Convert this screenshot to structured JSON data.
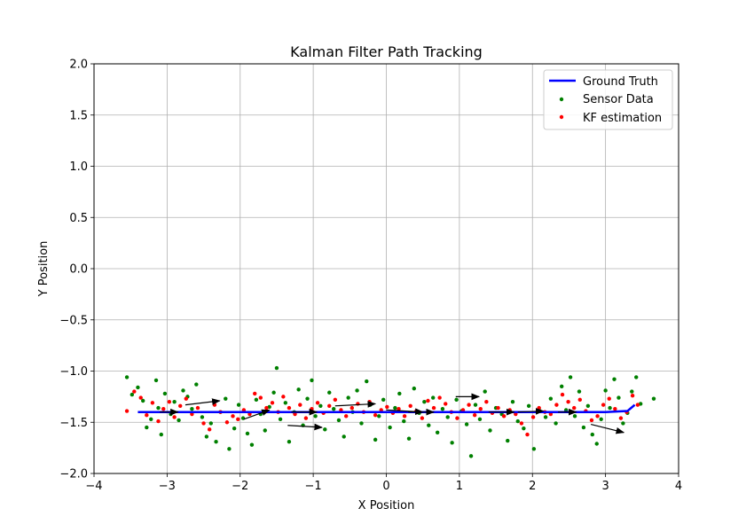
{
  "chart_data": {
    "type": "scatter",
    "title": "Kalman Filter Path Tracking",
    "xlabel": "X Position",
    "ylabel": "Y Position",
    "xlim": [
      -4,
      4
    ],
    "ylim": [
      -2,
      2
    ],
    "xticks": [
      -4,
      -3,
      -2,
      -1,
      0,
      1,
      2,
      3,
      4
    ],
    "yticks": [
      -2.0,
      -1.5,
      -1.0,
      -0.5,
      0.0,
      0.5,
      1.0,
      1.5,
      2.0
    ],
    "xtick_labels": [
      "−4",
      "−3",
      "−2",
      "−1",
      "0",
      "1",
      "2",
      "3",
      "4"
    ],
    "ytick_labels": [
      "−2.0",
      "−1.5",
      "−1.0",
      "−0.5",
      "0.0",
      "0.5",
      "1.0",
      "1.5",
      "2.0"
    ],
    "grid": true,
    "legend_position": "top-right",
    "colors": {
      "ground_truth": "#0000ff",
      "sensor": "#008000",
      "kf": "#ff0000",
      "arrow": "#000000"
    },
    "series": [
      {
        "name": "Ground Truth",
        "kind": "line",
        "x": [
          -3.4,
          -3.0,
          -2.5,
          -2.0,
          -1.5,
          -1.0,
          -0.5,
          0.0,
          0.5,
          1.0,
          1.5,
          2.0,
          2.5,
          3.0,
          3.3,
          3.4
        ],
        "y": [
          -1.4,
          -1.4,
          -1.4,
          -1.4,
          -1.4,
          -1.4,
          -1.4,
          -1.4,
          -1.4,
          -1.4,
          -1.4,
          -1.4,
          -1.4,
          -1.4,
          -1.39,
          -1.33
        ]
      },
      {
        "name": "Sensor Data",
        "kind": "scatter",
        "points": [
          [
            -3.55,
            -1.06
          ],
          [
            -3.48,
            -1.23
          ],
          [
            -3.4,
            -1.16
          ],
          [
            -3.33,
            -1.29
          ],
          [
            -3.28,
            -1.55
          ],
          [
            -3.22,
            -1.47
          ],
          [
            -3.15,
            -1.09
          ],
          [
            -3.12,
            -1.36
          ],
          [
            -3.08,
            -1.62
          ],
          [
            -3.03,
            -1.22
          ],
          [
            -2.95,
            -1.42
          ],
          [
            -2.9,
            -1.3
          ],
          [
            -2.84,
            -1.48
          ],
          [
            -2.78,
            -1.19
          ],
          [
            -2.72,
            -1.25
          ],
          [
            -2.66,
            -1.37
          ],
          [
            -2.6,
            -1.13
          ],
          [
            -2.52,
            -1.45
          ],
          [
            -2.46,
            -1.64
          ],
          [
            -2.4,
            -1.51
          ],
          [
            -2.33,
            -1.69
          ],
          [
            -2.27,
            -1.4
          ],
          [
            -2.2,
            -1.27
          ],
          [
            -2.15,
            -1.76
          ],
          [
            -2.08,
            -1.56
          ],
          [
            -2.02,
            -1.33
          ],
          [
            -1.96,
            -1.46
          ],
          [
            -1.9,
            -1.61
          ],
          [
            -1.84,
            -1.72
          ],
          [
            -1.78,
            -1.28
          ],
          [
            -1.72,
            -1.42
          ],
          [
            -1.66,
            -1.58
          ],
          [
            -1.6,
            -1.35
          ],
          [
            -1.54,
            -1.21
          ],
          [
            -1.5,
            -0.97
          ],
          [
            -1.45,
            -1.47
          ],
          [
            -1.38,
            -1.31
          ],
          [
            -1.33,
            -1.69
          ],
          [
            -1.26,
            -1.4
          ],
          [
            -1.2,
            -1.18
          ],
          [
            -1.14,
            -1.53
          ],
          [
            -1.08,
            -1.27
          ],
          [
            -1.02,
            -1.09
          ],
          [
            -0.97,
            -1.44
          ],
          [
            -0.9,
            -1.34
          ],
          [
            -0.84,
            -1.57
          ],
          [
            -0.78,
            -1.21
          ],
          [
            -0.72,
            -1.37
          ],
          [
            -0.65,
            -1.48
          ],
          [
            -0.58,
            -1.64
          ],
          [
            -0.52,
            -1.26
          ],
          [
            -0.46,
            -1.4
          ],
          [
            -0.4,
            -1.19
          ],
          [
            -0.34,
            -1.51
          ],
          [
            -0.27,
            -1.1
          ],
          [
            -0.22,
            -1.33
          ],
          [
            -0.15,
            -1.67
          ],
          [
            -0.1,
            -1.44
          ],
          [
            -0.04,
            -1.28
          ],
          [
            0.05,
            -1.55
          ],
          [
            0.12,
            -1.36
          ],
          [
            0.18,
            -1.22
          ],
          [
            0.24,
            -1.49
          ],
          [
            0.31,
            -1.66
          ],
          [
            0.38,
            -1.17
          ],
          [
            0.45,
            -1.41
          ],
          [
            0.52,
            -1.3
          ],
          [
            0.58,
            -1.53
          ],
          [
            0.64,
            -1.26
          ],
          [
            0.7,
            -1.6
          ],
          [
            0.77,
            -1.37
          ],
          [
            0.84,
            -1.45
          ],
          [
            0.9,
            -1.7
          ],
          [
            0.96,
            -1.28
          ],
          [
            1.03,
            -1.39
          ],
          [
            1.1,
            -1.52
          ],
          [
            1.16,
            -1.83
          ],
          [
            1.22,
            -1.33
          ],
          [
            1.28,
            -1.47
          ],
          [
            1.35,
            -1.2
          ],
          [
            1.42,
            -1.58
          ],
          [
            1.5,
            -1.36
          ],
          [
            1.58,
            -1.42
          ],
          [
            1.66,
            -1.68
          ],
          [
            1.73,
            -1.3
          ],
          [
            1.8,
            -1.49
          ],
          [
            1.88,
            -1.56
          ],
          [
            1.95,
            -1.34
          ],
          [
            2.02,
            -1.76
          ],
          [
            2.1,
            -1.39
          ],
          [
            2.18,
            -1.45
          ],
          [
            2.25,
            -1.27
          ],
          [
            2.32,
            -1.51
          ],
          [
            2.4,
            -1.15
          ],
          [
            2.46,
            -1.38
          ],
          [
            2.52,
            -1.06
          ],
          [
            2.58,
            -1.44
          ],
          [
            2.64,
            -1.2
          ],
          [
            2.7,
            -1.55
          ],
          [
            2.76,
            -1.34
          ],
          [
            2.82,
            -1.62
          ],
          [
            2.88,
            -1.71
          ],
          [
            2.94,
            -1.47
          ],
          [
            3.0,
            -1.19
          ],
          [
            3.06,
            -1.36
          ],
          [
            3.12,
            -1.08
          ],
          [
            3.18,
            -1.26
          ],
          [
            3.24,
            -1.51
          ],
          [
            3.3,
            -1.41
          ],
          [
            3.36,
            -1.2
          ],
          [
            3.42,
            -1.06
          ],
          [
            3.48,
            -1.32
          ],
          [
            3.66,
            -1.27
          ]
        ]
      },
      {
        "name": "KF estimation",
        "kind": "scatter",
        "points": [
          [
            -3.55,
            -1.39
          ],
          [
            -3.45,
            -1.2
          ],
          [
            -3.36,
            -1.26
          ],
          [
            -3.28,
            -1.43
          ],
          [
            -3.2,
            -1.31
          ],
          [
            -3.12,
            -1.49
          ],
          [
            -3.05,
            -1.37
          ],
          [
            -2.97,
            -1.3
          ],
          [
            -2.9,
            -1.45
          ],
          [
            -2.82,
            -1.34
          ],
          [
            -2.74,
            -1.27
          ],
          [
            -2.66,
            -1.42
          ],
          [
            -2.58,
            -1.36
          ],
          [
            -2.5,
            -1.51
          ],
          [
            -2.42,
            -1.57
          ],
          [
            -2.35,
            -1.33
          ],
          [
            -2.27,
            -1.4
          ],
          [
            -2.18,
            -1.5
          ],
          [
            -2.1,
            -1.44
          ],
          [
            -2.03,
            -1.47
          ],
          [
            -1.95,
            -1.38
          ],
          [
            -1.87,
            -1.42
          ],
          [
            -1.8,
            -1.22
          ],
          [
            -1.72,
            -1.26
          ],
          [
            -1.64,
            -1.36
          ],
          [
            -1.56,
            -1.31
          ],
          [
            -1.48,
            -1.4
          ],
          [
            -1.41,
            -1.25
          ],
          [
            -1.33,
            -1.36
          ],
          [
            -1.25,
            -1.42
          ],
          [
            -1.18,
            -1.33
          ],
          [
            -1.1,
            -1.46
          ],
          [
            -1.02,
            -1.37
          ],
          [
            -0.94,
            -1.31
          ],
          [
            -0.86,
            -1.41
          ],
          [
            -0.78,
            -1.34
          ],
          [
            -0.7,
            -1.28
          ],
          [
            -0.62,
            -1.38
          ],
          [
            -0.55,
            -1.44
          ],
          [
            -0.47,
            -1.36
          ],
          [
            -0.39,
            -1.32
          ],
          [
            -0.31,
            -1.4
          ],
          [
            -0.23,
            -1.3
          ],
          [
            -0.15,
            -1.43
          ],
          [
            -0.07,
            -1.38
          ],
          [
            0.01,
            -1.35
          ],
          [
            0.09,
            -1.41
          ],
          [
            0.17,
            -1.37
          ],
          [
            0.25,
            -1.44
          ],
          [
            0.33,
            -1.34
          ],
          [
            0.41,
            -1.39
          ],
          [
            0.49,
            -1.46
          ],
          [
            0.57,
            -1.29
          ],
          [
            0.65,
            -1.36
          ],
          [
            0.73,
            -1.26
          ],
          [
            0.81,
            -1.32
          ],
          [
            0.89,
            -1.4
          ],
          [
            0.97,
            -1.46
          ],
          [
            1.05,
            -1.38
          ],
          [
            1.13,
            -1.33
          ],
          [
            1.21,
            -1.43
          ],
          [
            1.29,
            -1.37
          ],
          [
            1.37,
            -1.3
          ],
          [
            1.45,
            -1.41
          ],
          [
            1.53,
            -1.36
          ],
          [
            1.61,
            -1.44
          ],
          [
            1.69,
            -1.38
          ],
          [
            1.77,
            -1.42
          ],
          [
            1.85,
            -1.51
          ],
          [
            1.93,
            -1.62
          ],
          [
            2.01,
            -1.45
          ],
          [
            2.09,
            -1.36
          ],
          [
            2.17,
            -1.4
          ],
          [
            2.25,
            -1.42
          ],
          [
            2.33,
            -1.33
          ],
          [
            2.41,
            -1.23
          ],
          [
            2.49,
            -1.3
          ],
          [
            2.57,
            -1.36
          ],
          [
            2.65,
            -1.28
          ],
          [
            2.73,
            -1.39
          ],
          [
            2.81,
            -1.48
          ],
          [
            2.89,
            -1.44
          ],
          [
            2.97,
            -1.33
          ],
          [
            3.05,
            -1.27
          ],
          [
            3.13,
            -1.37
          ],
          [
            3.21,
            -1.46
          ],
          [
            3.29,
            -1.4
          ],
          [
            3.37,
            -1.24
          ],
          [
            3.44,
            -1.33
          ]
        ]
      }
    ],
    "arrows": [
      {
        "from": [
          -3.1,
          -1.4
        ],
        "to": [
          -2.85,
          -1.4
        ]
      },
      {
        "from": [
          -2.75,
          -1.33
        ],
        "to": [
          -2.28,
          -1.29
        ]
      },
      {
        "from": [
          -1.95,
          -1.47
        ],
        "to": [
          -1.6,
          -1.38
        ]
      },
      {
        "from": [
          -1.35,
          -1.53
        ],
        "to": [
          -0.88,
          -1.55
        ]
      },
      {
        "from": [
          -0.7,
          -1.34
        ],
        "to": [
          -0.15,
          -1.32
        ]
      },
      {
        "from": [
          0.0,
          -1.38
        ],
        "to": [
          0.5,
          -1.4
        ]
      },
      {
        "from": [
          0.95,
          -1.25
        ],
        "to": [
          1.27,
          -1.25
        ]
      },
      {
        "from": [
          1.8,
          -1.4
        ],
        "to": [
          2.15,
          -1.39
        ]
      },
      {
        "from": [
          2.35,
          -1.4
        ],
        "to": [
          2.6,
          -1.4
        ]
      },
      {
        "from": [
          2.8,
          -1.52
        ],
        "to": [
          3.25,
          -1.6
        ]
      },
      {
        "from": [
          -1.3,
          -1.4
        ],
        "to": [
          -0.95,
          -1.4
        ]
      },
      {
        "from": [
          0.3,
          -1.4
        ],
        "to": [
          0.65,
          -1.4
        ]
      },
      {
        "from": [
          1.4,
          -1.4
        ],
        "to": [
          1.75,
          -1.4
        ]
      }
    ]
  }
}
